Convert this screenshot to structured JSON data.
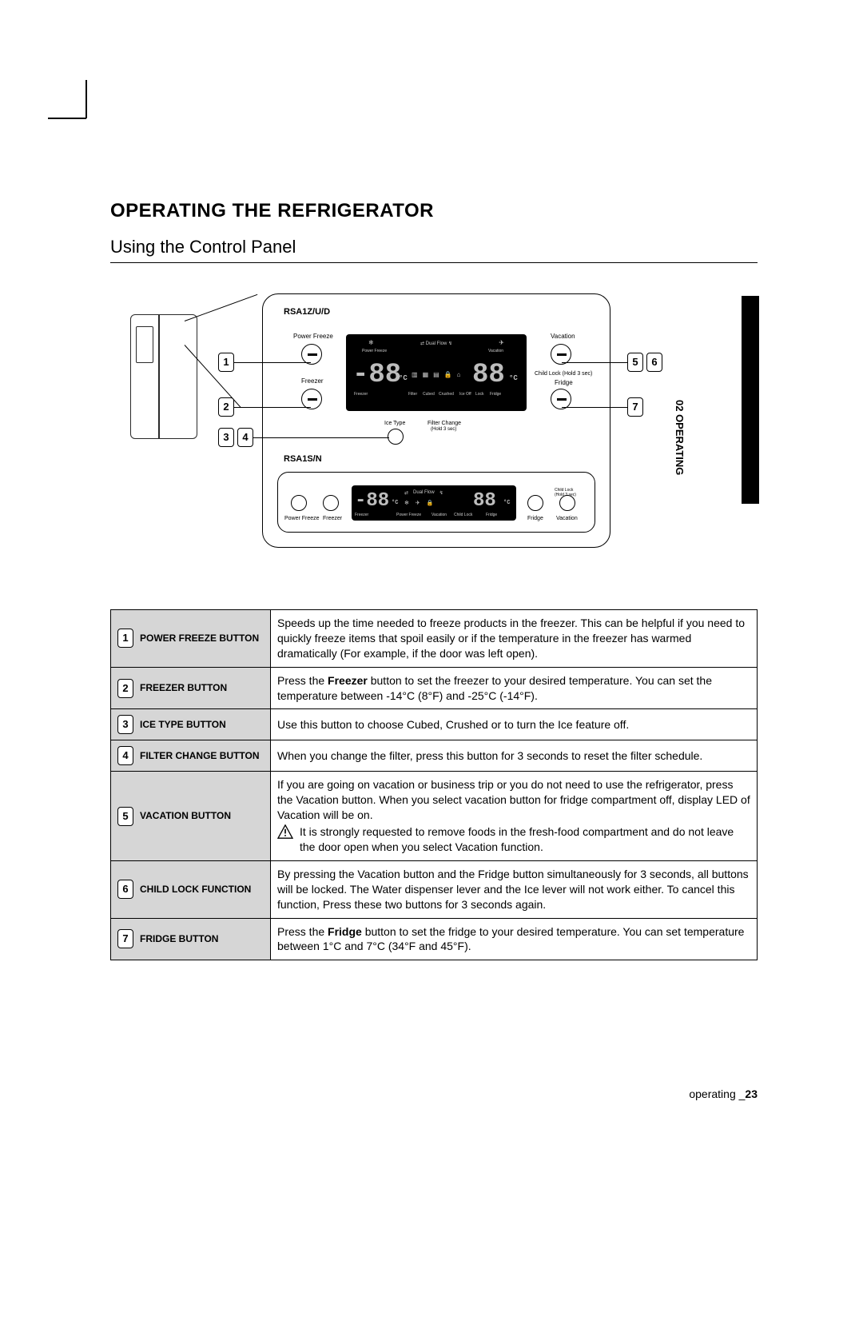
{
  "page": {
    "chapter_heading": "OPERATING THE REFRIGERATOR",
    "section_heading": "Using the Control Panel",
    "sidetab_label": "02 OPERATING",
    "footer_label": "operating _",
    "footer_page": "23"
  },
  "diagram": {
    "model_top": "RSA1Z/U/D",
    "model_bottom": "RSA1S/N",
    "labels": {
      "power_freeze": "Power Freeze",
      "freezer": "Freezer",
      "ice_type": "Ice Type",
      "filter_change": "Filter Change",
      "hold3": "(Hold 3 sec)",
      "vacation": "Vacation",
      "child_lock": "Child Lock",
      "child_lock_hold": "(Hold 3 sec)",
      "fridge": "Fridge"
    },
    "display": {
      "seg_left": "-88",
      "seg_right": "88",
      "unit": "°C",
      "dual_flow": "Dual Flow",
      "icons_row1": [
        "❄",
        "❆",
        "↯",
        "✦"
      ],
      "tiny_labels_top": [
        "Power Freeze",
        "",
        "",
        "Vacation"
      ],
      "icons_row2": [
        "▥",
        "▦",
        "▤",
        "🔒",
        "🏠"
      ],
      "tiny_labels_bottom": [
        "Freezer",
        "Filter",
        "Cubed",
        "Crushed",
        "Ice Off",
        "Lock",
        "Fridge"
      ]
    },
    "display_bottom": {
      "tiny_labels": [
        "Power Freeze",
        "Freezer",
        "Freezer",
        "Power Freeze",
        "Vacation",
        "Child Lock",
        "Fridge",
        "Fridge",
        "Vacation"
      ],
      "child_lock_side": "Child Lock\n(Hold 3 sec)"
    },
    "numboxes": {
      "n1": "1",
      "n2": "2",
      "n3": "3",
      "n4": "4",
      "n5": "5",
      "n6": "6",
      "n7": "7"
    },
    "colors": {
      "panel_bg": "#ffffff",
      "display_bg": "#000000",
      "segment": "#bdbdbd",
      "tiny_text": "#c9c9c9",
      "frame_border": "#000000"
    }
  },
  "table": [
    {
      "num": "1",
      "name": "POWER FREEZE BUTTON",
      "desc_html": "Speeds up the time needed to freeze products in the freezer. This can be helpful if you need to quickly freeze items that spoil easily or if the temperature in the freezer has warmed dramatically (For example, if the door was left open)."
    },
    {
      "num": "2",
      "name": "FREEZER BUTTON",
      "desc_html": "Press the <b>Freezer</b> button to set the freezer to your desired temperature. You can set the temperature between -14°C (8°F) and -25°C (-14°F)."
    },
    {
      "num": "3",
      "name": "ICE TYPE BUTTON",
      "desc_html": "Use this button to choose Cubed, Crushed or to turn the Ice feature off."
    },
    {
      "num": "4",
      "name": "FILTER CHANGE BUTTON",
      "desc_html": "When you change the filter, press this button for 3 seconds to reset the filter schedule."
    },
    {
      "num": "5",
      "name": "VACATION BUTTON",
      "desc_html": "If you are going on vacation or business trip or you do not need to use the refrigerator, press the Vacation button. When you select vacation button for fridge compartment off, display LED of Vacation will be on.",
      "warn": "It is strongly requested to remove foods in the fresh-food compartment and do not leave the door open when you select Vacation function."
    },
    {
      "num": "6",
      "name": "CHILD LOCK FUNCTION",
      "desc_html": "By pressing the Vacation button and the Fridge button simultaneously for 3 seconds, all buttons will be locked. The Water dispenser lever and the Ice lever will not work either. To cancel this function, Press these two buttons for 3 seconds again."
    },
    {
      "num": "7",
      "name": "FRIDGE BUTTON",
      "desc_html": "Press the <b>Fridge</b> button to set the fridge to your desired temperature. You can set temperature between 1°C and 7°C (34°F and 45°F)."
    }
  ]
}
